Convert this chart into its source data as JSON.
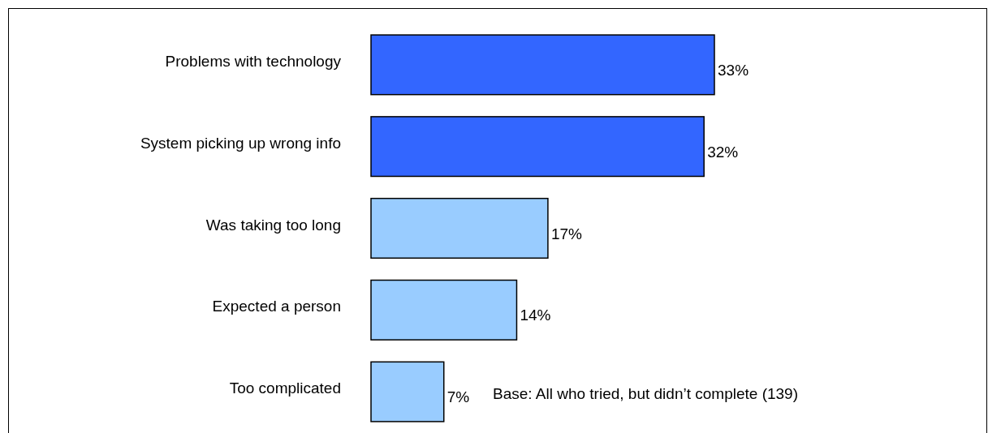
{
  "chart_data": {
    "type": "bar",
    "orientation": "horizontal",
    "categories": [
      "Problems with technology",
      "System picking up wrong info",
      "Was taking too long",
      "Expected a person",
      "Too complicated"
    ],
    "values": [
      33,
      32,
      17,
      14,
      7
    ],
    "colors": [
      "#3366ff",
      "#3366ff",
      "#99ccff",
      "#99ccff",
      "#99ccff"
    ],
    "value_labels": [
      "33%",
      "32%",
      "17%",
      "14%",
      "7%"
    ],
    "annotations": [
      {
        "text": "Base:  All who tried, but didn’t complete (139)"
      }
    ]
  }
}
